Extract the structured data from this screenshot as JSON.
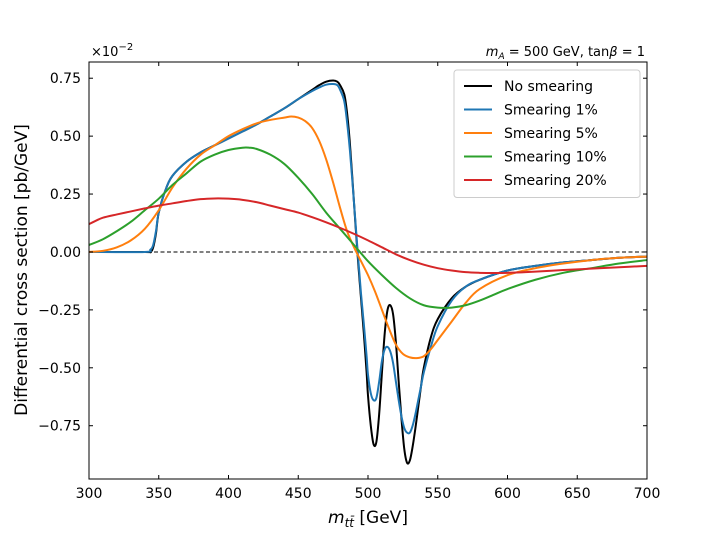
{
  "chart_data": {
    "type": "line",
    "title": "",
    "annotation_right": "m_A = 500 GeV, tanβ = 1",
    "annotation_right_parts": {
      "m": "m",
      "sub_A": "A",
      "rest": " = 500 GeV, tan",
      "beta": "β",
      "tail": " = 1"
    },
    "offset_text": "×10",
    "offset_exponent": "−2",
    "xlabel_main": "m",
    "xlabel_sub": "tt̄",
    "xlabel_unit": " [GeV]",
    "ylabel": "Differential cross section [pb/GeV]",
    "xlim": [
      300,
      700
    ],
    "ylim": [
      -0.98,
      0.82
    ],
    "xticks": [
      300,
      350,
      400,
      450,
      500,
      550,
      600,
      650,
      700
    ],
    "xtick_labels": [
      "300",
      "350",
      "400",
      "450",
      "500",
      "550",
      "600",
      "650",
      "700"
    ],
    "yticks": [
      -0.75,
      -0.5,
      -0.25,
      0.0,
      0.25,
      0.5,
      0.75
    ],
    "ytick_labels": [
      "−0.75",
      "−0.50",
      "−0.25",
      "0.00",
      "0.25",
      "0.50",
      "0.75"
    ],
    "zero_line": true,
    "grid": false,
    "legend_position": "top-right",
    "series": [
      {
        "name": "No smearing",
        "color": "#000000",
        "x": [
          300,
          340,
          344,
          346,
          348,
          350,
          355,
          360,
          370,
          380,
          390,
          400,
          410,
          420,
          430,
          440,
          450,
          460,
          465,
          470,
          475,
          478,
          480,
          483,
          485,
          487,
          489,
          491,
          493,
          495,
          497,
          499,
          500,
          502,
          504,
          506,
          508,
          510,
          512,
          514,
          516,
          518,
          520,
          522,
          524,
          526,
          528,
          530,
          532,
          534,
          536,
          538,
          540,
          545,
          550,
          560,
          570,
          580,
          600,
          620,
          640,
          660,
          680,
          700
        ],
        "y": [
          0,
          0,
          0,
          0.02,
          0.08,
          0.17,
          0.27,
          0.33,
          0.39,
          0.43,
          0.46,
          0.49,
          0.52,
          0.55,
          0.585,
          0.62,
          0.66,
          0.7,
          0.72,
          0.735,
          0.74,
          0.735,
          0.72,
          0.68,
          0.6,
          0.47,
          0.3,
          0.12,
          -0.05,
          -0.2,
          -0.35,
          -0.52,
          -0.62,
          -0.75,
          -0.83,
          -0.82,
          -0.7,
          -0.52,
          -0.35,
          -0.25,
          -0.23,
          -0.27,
          -0.39,
          -0.56,
          -0.72,
          -0.85,
          -0.91,
          -0.9,
          -0.84,
          -0.76,
          -0.67,
          -0.58,
          -0.5,
          -0.37,
          -0.29,
          -0.2,
          -0.15,
          -0.12,
          -0.08,
          -0.06,
          -0.045,
          -0.035,
          -0.025,
          -0.02
        ]
      },
      {
        "name": "Smearing 1%",
        "color": "#1f77b4",
        "x": [
          300,
          340,
          344,
          346,
          348,
          350,
          355,
          360,
          370,
          380,
          390,
          400,
          410,
          420,
          430,
          440,
          450,
          460,
          465,
          470,
          475,
          478,
          480,
          483,
          485,
          487,
          489,
          491,
          493,
          495,
          497,
          499,
          500,
          502,
          504,
          506,
          508,
          510,
          512,
          514,
          516,
          518,
          520,
          522,
          524,
          526,
          528,
          530,
          532,
          534,
          536,
          538,
          540,
          545,
          550,
          560,
          570,
          580,
          600,
          620,
          640,
          660,
          680,
          700
        ],
        "y": [
          0,
          0,
          0.01,
          0.03,
          0.09,
          0.17,
          0.27,
          0.33,
          0.39,
          0.43,
          0.46,
          0.49,
          0.52,
          0.55,
          0.585,
          0.62,
          0.66,
          0.695,
          0.71,
          0.722,
          0.725,
          0.72,
          0.7,
          0.65,
          0.56,
          0.44,
          0.29,
          0.13,
          -0.03,
          -0.18,
          -0.31,
          -0.45,
          -0.53,
          -0.61,
          -0.64,
          -0.63,
          -0.56,
          -0.47,
          -0.42,
          -0.41,
          -0.43,
          -0.48,
          -0.56,
          -0.64,
          -0.71,
          -0.76,
          -0.78,
          -0.78,
          -0.75,
          -0.7,
          -0.64,
          -0.58,
          -0.52,
          -0.41,
          -0.32,
          -0.21,
          -0.15,
          -0.12,
          -0.08,
          -0.06,
          -0.045,
          -0.035,
          -0.025,
          -0.02
        ]
      },
      {
        "name": "Smearing 5%",
        "color": "#ff7f0e",
        "x": [
          300,
          310,
          320,
          330,
          340,
          350,
          360,
          370,
          380,
          390,
          400,
          410,
          420,
          430,
          440,
          445,
          450,
          455,
          460,
          465,
          470,
          475,
          480,
          485,
          490,
          495,
          500,
          505,
          510,
          515,
          520,
          525,
          530,
          535,
          540,
          545,
          550,
          560,
          570,
          580,
          600,
          620,
          640,
          660,
          680,
          700
        ],
        "y": [
          0,
          0.005,
          0.02,
          0.05,
          0.1,
          0.18,
          0.28,
          0.36,
          0.42,
          0.46,
          0.5,
          0.53,
          0.555,
          0.57,
          0.58,
          0.585,
          0.58,
          0.565,
          0.535,
          0.48,
          0.4,
          0.3,
          0.19,
          0.09,
          0.02,
          -0.04,
          -0.1,
          -0.17,
          -0.25,
          -0.33,
          -0.4,
          -0.44,
          -0.455,
          -0.458,
          -0.45,
          -0.42,
          -0.38,
          -0.3,
          -0.22,
          -0.16,
          -0.1,
          -0.07,
          -0.05,
          -0.035,
          -0.025,
          -0.02
        ]
      },
      {
        "name": "Smearing 10%",
        "color": "#2ca02c",
        "x": [
          300,
          310,
          320,
          330,
          340,
          350,
          360,
          370,
          380,
          390,
          400,
          410,
          415,
          420,
          430,
          440,
          450,
          460,
          470,
          480,
          490,
          500,
          510,
          520,
          530,
          540,
          550,
          560,
          570,
          580,
          590,
          600,
          620,
          640,
          660,
          680,
          700
        ],
        "y": [
          0.03,
          0.055,
          0.09,
          0.13,
          0.18,
          0.23,
          0.29,
          0.34,
          0.39,
          0.42,
          0.44,
          0.45,
          0.45,
          0.445,
          0.42,
          0.38,
          0.32,
          0.25,
          0.17,
          0.1,
          0.03,
          -0.04,
          -0.1,
          -0.155,
          -0.2,
          -0.23,
          -0.24,
          -0.24,
          -0.23,
          -0.21,
          -0.185,
          -0.16,
          -0.12,
          -0.09,
          -0.07,
          -0.05,
          -0.035
        ]
      },
      {
        "name": "Smearing 20%",
        "color": "#d62728",
        "x": [
          300,
          305,
          310,
          320,
          330,
          340,
          350,
          360,
          370,
          380,
          390,
          400,
          410,
          420,
          430,
          440,
          450,
          460,
          470,
          480,
          490,
          500,
          510,
          520,
          530,
          540,
          550,
          560,
          570,
          580,
          590,
          600,
          610,
          620,
          640,
          660,
          680,
          700
        ],
        "y": [
          0.12,
          0.135,
          0.148,
          0.162,
          0.175,
          0.188,
          0.2,
          0.21,
          0.22,
          0.228,
          0.231,
          0.23,
          0.225,
          0.215,
          0.2,
          0.185,
          0.17,
          0.15,
          0.128,
          0.104,
          0.078,
          0.05,
          0.02,
          -0.01,
          -0.035,
          -0.055,
          -0.07,
          -0.08,
          -0.087,
          -0.09,
          -0.091,
          -0.09,
          -0.088,
          -0.085,
          -0.078,
          -0.072,
          -0.066,
          -0.06
        ]
      }
    ]
  }
}
